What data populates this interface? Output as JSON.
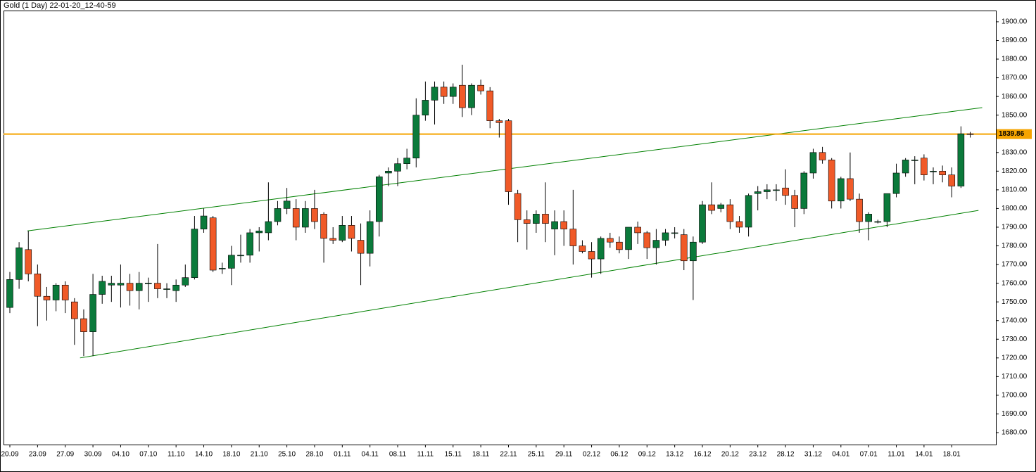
{
  "chart_data": {
    "type": "candlestick",
    "title": "Gold (1 Day) 22-01-20_12-40-59",
    "categories": [
      "20.09",
      null,
      null,
      "23.09",
      null,
      null,
      "27.09",
      null,
      null,
      "30.09",
      null,
      null,
      "04.10",
      null,
      null,
      "07.10",
      null,
      null,
      "11.10",
      null,
      null,
      "14.10",
      null,
      null,
      "18.10",
      null,
      null,
      "21.10",
      null,
      null,
      "25.10",
      null,
      null,
      "28.10",
      null,
      null,
      "01.11",
      null,
      null,
      "04.11",
      null,
      null,
      "08.11",
      null,
      null,
      "11.11",
      null,
      null,
      "15.11",
      null,
      null,
      "18.11",
      null,
      null,
      "22.11",
      null,
      null,
      "25.11",
      null,
      null,
      "29.11",
      null,
      null,
      "02.12",
      null,
      null,
      "06.12",
      null,
      null,
      "09.12",
      null,
      null,
      "13.12",
      null,
      null,
      "16.12",
      null,
      null,
      "20.12",
      null,
      null,
      "23.12",
      null,
      null,
      "28.12",
      null,
      null,
      "31.12",
      null,
      null,
      "04.01",
      null,
      null,
      "07.01",
      null,
      null,
      "11.01",
      null,
      null,
      "14.01",
      null,
      null,
      "18.01",
      null,
      null
    ],
    "open": [
      1747,
      1762,
      1778,
      1765,
      1753,
      1751,
      1759,
      1750,
      1741,
      1734,
      1754,
      1759,
      1759,
      1760,
      1756,
      1760,
      1760,
      1757,
      1756,
      1759,
      1763,
      1789,
      1795,
      1768,
      1768,
      1775,
      1775,
      1787,
      1787,
      1793,
      1800,
      1800,
      1790,
      1800,
      1797,
      1784,
      1783,
      1791,
      1783,
      1776,
      1793,
      1819,
      1820,
      1824,
      1827,
      1850,
      1858,
      1865,
      1860,
      1866,
      1854,
      1866,
      1863,
      1847,
      1847,
      1808,
      1794,
      1792,
      1797,
      1789,
      1793,
      1789,
      1780,
      1777,
      1773,
      1784,
      1782,
      1778,
      1790,
      1787,
      1779,
      1783,
      1787,
      1786,
      1772,
      1782,
      1802,
      1800,
      1802,
      1793,
      1790,
      1808,
      1809,
      1810,
      1811,
      1807,
      1800,
      1819,
      1830,
      1826,
      1804,
      1816,
      1805,
      1793,
      1793,
      1793,
      1808,
      1819,
      1826,
      1827,
      1820,
      1820,
      1818,
      1812,
      1840
    ],
    "high": [
      1766,
      1782,
      1788,
      1770,
      1758,
      1760,
      1761,
      1752,
      1746,
      1765,
      1764,
      1764,
      1770,
      1765,
      1766,
      1763,
      1781,
      1760,
      1762,
      1770,
      1796,
      1800,
      1796,
      1771,
      1780,
      1786,
      1789,
      1790,
      1814,
      1804,
      1811,
      1805,
      1804,
      1810,
      1798,
      1790,
      1796,
      1796,
      1792,
      1799,
      1818,
      1822,
      1827,
      1832,
      1859,
      1868,
      1868,
      1868,
      1867,
      1877,
      1867,
      1869,
      1865,
      1848,
      1848,
      1810,
      1799,
      1799,
      1814,
      1799,
      1799,
      1810,
      1783,
      1782,
      1785,
      1787,
      1785,
      1790,
      1793,
      1788,
      1789,
      1789,
      1790,
      1789,
      1785,
      1804,
      1814,
      1803,
      1805,
      1796,
      1808,
      1812,
      1813,
      1813,
      1821,
      1810,
      1820,
      1832,
      1833,
      1827,
      1817,
      1830,
      1808,
      1798,
      1794,
      1808,
      1824,
      1827,
      1828,
      1829,
      1822,
      1823,
      1822,
      1844,
      1841
    ],
    "low": [
      1744,
      1757,
      1761,
      1737,
      1740,
      1745,
      1744,
      1727,
      1721,
      1721,
      1749,
      1750,
      1747,
      1748,
      1746,
      1750,
      1752,
      1752,
      1750,
      1758,
      1762,
      1787,
      1766,
      1765,
      1759,
      1771,
      1771,
      1777,
      1783,
      1791,
      1797,
      1783,
      1787,
      1789,
      1771,
      1781,
      1782,
      1777,
      1759,
      1769,
      1785,
      1812,
      1812,
      1821,
      1822,
      1847,
      1845,
      1856,
      1856,
      1849,
      1850,
      1861,
      1843,
      1838,
      1802,
      1782,
      1778,
      1787,
      1782,
      1775,
      1780,
      1770,
      1776,
      1763,
      1765,
      1779,
      1776,
      1773,
      1781,
      1773,
      1770,
      1780,
      1784,
      1767,
      1751,
      1781,
      1797,
      1798,
      1789,
      1787,
      1785,
      1799,
      1805,
      1804,
      1802,
      1790,
      1797,
      1816,
      1824,
      1800,
      1800,
      1804,
      1787,
      1783,
      1792,
      1790,
      1806,
      1817,
      1813,
      1815,
      1813,
      1814,
      1806,
      1811,
      1838
    ],
    "close": [
      1762,
      1779,
      1765,
      1753,
      1751,
      1759,
      1751,
      1741,
      1734,
      1754,
      1761,
      1760,
      1760,
      1756,
      1760,
      1760,
      1757,
      1757,
      1759,
      1763,
      1789,
      1796,
      1767,
      1768,
      1775,
      1775,
      1787,
      1788,
      1793,
      1800,
      1804,
      1790,
      1800,
      1793,
      1784,
      1783,
      1791,
      1784,
      1776,
      1793,
      1817,
      1820,
      1824,
      1827,
      1850,
      1858,
      1865,
      1860,
      1865,
      1854,
      1866,
      1863,
      1847,
      1846,
      1809,
      1794,
      1792,
      1797,
      1792,
      1793,
      1789,
      1780,
      1777,
      1773,
      1784,
      1782,
      1778,
      1790,
      1787,
      1779,
      1783,
      1787,
      1787,
      1772,
      1782,
      1802,
      1799,
      1802,
      1793,
      1790,
      1807,
      1809,
      1810,
      1810,
      1807,
      1800,
      1819,
      1830,
      1826,
      1804,
      1816,
      1805,
      1793,
      1797,
      1793,
      1808,
      1819,
      1826,
      1826,
      1818,
      1820,
      1818,
      1812,
      1840,
      1839.86
    ],
    "up_color": "#0b7a3b",
    "down_color": "#f05a28",
    "ylim": [
      1673.6,
      1906
    ],
    "yticks": [
      {
        "value": 1680,
        "label": "1680.00"
      },
      {
        "value": 1690,
        "label": "1690.00"
      },
      {
        "value": 1700,
        "label": "1700.00"
      },
      {
        "value": 1710,
        "label": "1710.00"
      },
      {
        "value": 1720,
        "label": "1720.00"
      },
      {
        "value": 1730,
        "label": "1730.00"
      },
      {
        "value": 1740,
        "label": "1740.00"
      },
      {
        "value": 1750,
        "label": "1750.00"
      },
      {
        "value": 1760,
        "label": "1760.00"
      },
      {
        "value": 1770,
        "label": "1770.00"
      },
      {
        "value": 1780,
        "label": "1780.00"
      },
      {
        "value": 1790,
        "label": "1790.00"
      },
      {
        "value": 1800,
        "label": "1800.00"
      },
      {
        "value": 1810,
        "label": "1810.00"
      },
      {
        "value": 1820,
        "label": "1820.00"
      },
      {
        "value": 1830,
        "label": "1830.00"
      },
      {
        "value": 1840,
        "label": "1840.00"
      },
      {
        "value": 1850,
        "label": "1850.00"
      },
      {
        "value": 1860,
        "label": "1860.00"
      },
      {
        "value": 1870,
        "label": "1870.00"
      },
      {
        "value": 1880,
        "label": "1880.00"
      },
      {
        "value": 1890,
        "label": "1890.00"
      },
      {
        "value": 1900,
        "label": "1900.00"
      }
    ],
    "price_line": {
      "value": 1839.86,
      "color": "#f5a400"
    },
    "trendlines": [
      {
        "x": [
          1.9,
          105.3
        ],
        "y": [
          1788,
          1854
        ],
        "color": "#008000"
      },
      {
        "x": [
          7.6,
          104.9
        ],
        "y": [
          1720,
          1799
        ],
        "color": "#008000"
      }
    ]
  }
}
